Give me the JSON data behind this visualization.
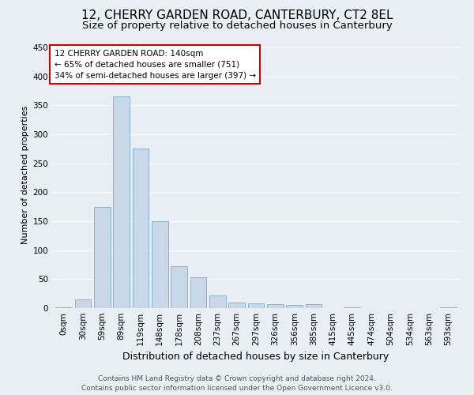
{
  "title": "12, CHERRY GARDEN ROAD, CANTERBURY, CT2 8EL",
  "subtitle": "Size of property relative to detached houses in Canterbury",
  "xlabel": "Distribution of detached houses by size in Canterbury",
  "ylabel": "Number of detached properties",
  "categories": [
    "0sqm",
    "30sqm",
    "59sqm",
    "89sqm",
    "119sqm",
    "148sqm",
    "178sqm",
    "208sqm",
    "237sqm",
    "267sqm",
    "297sqm",
    "326sqm",
    "356sqm",
    "385sqm",
    "415sqm",
    "445sqm",
    "474sqm",
    "504sqm",
    "534sqm",
    "563sqm",
    "593sqm"
  ],
  "values": [
    2,
    15,
    175,
    365,
    275,
    150,
    72,
    53,
    22,
    10,
    8,
    7,
    5,
    7,
    0,
    2,
    0,
    0,
    0,
    0,
    2
  ],
  "bar_color": "#c8d8e8",
  "bar_edge_color": "#8ab4cc",
  "annotation_line1": "12 CHERRY GARDEN ROAD: 140sqm",
  "annotation_line2": "← 65% of detached houses are smaller (751)",
  "annotation_line3": "34% of semi-detached houses are larger (397) →",
  "annotation_box_facecolor": "#ffffff",
  "annotation_box_edgecolor": "#cc0000",
  "bg_color": "#e8eef4",
  "grid_color": "#ffffff",
  "ylim": [
    0,
    460
  ],
  "yticks": [
    0,
    50,
    100,
    150,
    200,
    250,
    300,
    350,
    400,
    450
  ],
  "title_fontsize": 11,
  "subtitle_fontsize": 9.5,
  "xlabel_fontsize": 9,
  "ylabel_fontsize": 8,
  "tick_fontsize": 7.5,
  "annotation_fontsize": 7.5,
  "footer_fontsize": 6.5,
  "footer_line1": "Contains HM Land Registry data © Crown copyright and database right 2024.",
  "footer_line2": "Contains public sector information licensed under the Open Government Licence v3.0."
}
